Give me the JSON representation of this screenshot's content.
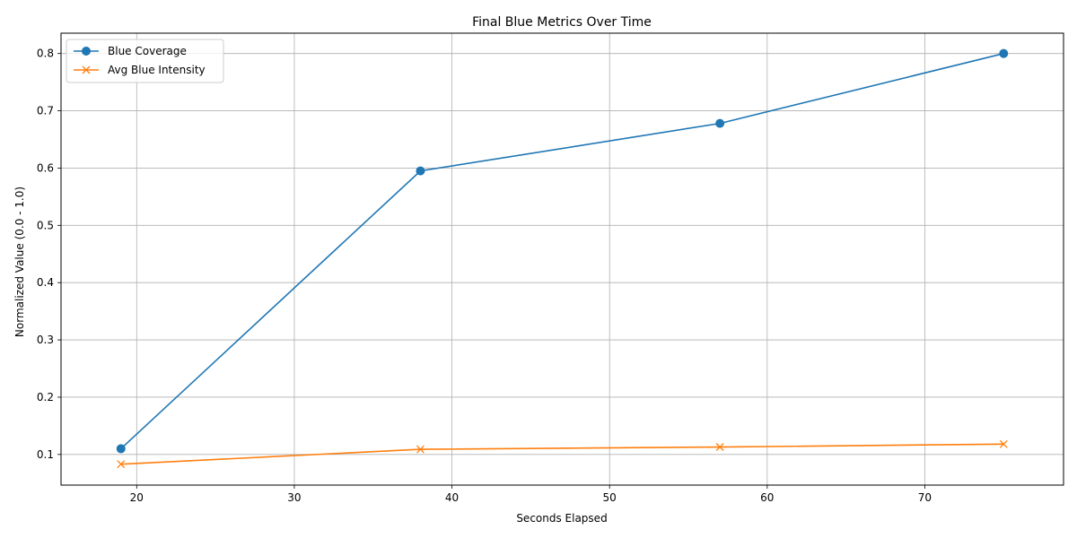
{
  "chart_data": {
    "type": "line",
    "title": "Final Blue Metrics Over Time",
    "xlabel": "Seconds Elapsed",
    "ylabel": "Normalized Value (0.0 - 1.0)",
    "x": [
      19,
      38,
      57,
      75
    ],
    "xlim": [
      15.2,
      78.8
    ],
    "ylim": [
      0.0465,
      0.8355
    ],
    "xticks": [
      20,
      30,
      40,
      50,
      60,
      70
    ],
    "yticks": [
      0.1,
      0.2,
      0.3,
      0.4,
      0.5,
      0.6,
      0.7,
      0.8
    ],
    "xtick_labels": [
      "20",
      "30",
      "40",
      "50",
      "60",
      "70"
    ],
    "ytick_labels": [
      "0.1",
      "0.2",
      "0.3",
      "0.4",
      "0.5",
      "0.6",
      "0.7",
      "0.8"
    ],
    "grid": true,
    "legend_position": "top-left",
    "series": [
      {
        "name": "Blue Coverage",
        "values": [
          0.11,
          0.595,
          0.678,
          0.8
        ],
        "color": "#1f77b4",
        "marker": "circle"
      },
      {
        "name": "Avg Blue Intensity",
        "values": [
          0.083,
          0.109,
          0.113,
          0.118
        ],
        "color": "#ff7f0e",
        "marker": "x"
      }
    ]
  }
}
